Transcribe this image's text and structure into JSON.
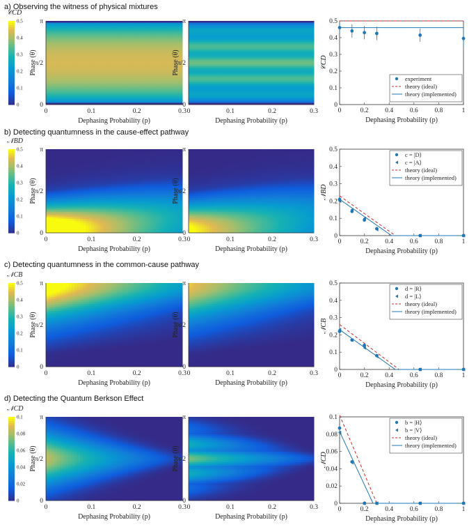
{
  "rows": [
    {
      "title": "a) Observing the witness of physical mixtures",
      "cblabel": "𝒞_{CD}",
      "cbmax": 0.5,
      "cbticks": [
        "0.5",
        "0.4",
        "0.3",
        "0.2",
        "0.1",
        "0"
      ],
      "pattern": "a"
    },
    {
      "title": "b) Detecting quantumness in the cause-effect pathway",
      "cblabel": "𝒩_{BD}",
      "cbmax": 0.5,
      "cbticks": [
        "0.5",
        "0.4",
        "0.3",
        "0.2",
        "0.1",
        "0"
      ],
      "pattern": "b"
    },
    {
      "title": "c) Detecting quantumness in the common-cause pathway",
      "cblabel": "𝒩_{CB}",
      "cbmax": 0.5,
      "cbticks": [
        "0.5",
        "0.4",
        "0.3",
        "0.2",
        "0.1",
        "0"
      ],
      "pattern": "c"
    },
    {
      "title": "d) Detecting the Quantum Berkson Effect",
      "cblabel": "𝒩_{CD}",
      "cbmax": 0.1,
      "cbticks": [
        "0.1",
        "0.08",
        "0.06",
        "0.04",
        "0.02",
        "0"
      ],
      "pattern": "d"
    }
  ],
  "heatmap_axes": {
    "xlabel": "Dephasing Probability (p)",
    "ylabel": "Phase (θ)",
    "xticks": [
      "0",
      "0.1",
      "0.2",
      "0.3"
    ],
    "yticks": [
      "0",
      "π/2",
      "π"
    ]
  },
  "colors": {
    "series": "#1f77b4",
    "ideal": "#d62728",
    "background": "#ffffff"
  },
  "chart_data": [
    {
      "type": "scatter",
      "title": "a) Observing the witness of physical mixtures",
      "xlabel": "Dephasing Probability (p)",
      "ylabel": "𝒞_{CD}",
      "xlim": [
        0,
        1
      ],
      "ylim": [
        0,
        0.5
      ],
      "xticks": [
        "0",
        "0.2",
        "0.4",
        "0.6",
        "0.8",
        "1"
      ],
      "yticks": [
        "0",
        "0.1",
        "0.2",
        "0.3",
        "0.4",
        "0.5"
      ],
      "series": [
        {
          "name": "experiment",
          "kind": "points",
          "x": [
            0,
            0.1,
            0.2,
            0.3,
            0.65,
            1
          ],
          "y": [
            0.46,
            0.44,
            0.43,
            0.425,
            0.415,
            0.395
          ],
          "err": [
            0.03,
            0.04,
            0.04,
            0.04,
            0.04,
            0.05
          ]
        }
      ],
      "lines": [
        {
          "name": "theory (ideal)",
          "style": "dashed",
          "x": [
            0,
            1
          ],
          "y": [
            0.5,
            0.5
          ]
        },
        {
          "name": "theory (implemented)",
          "style": "solid",
          "x": [
            0,
            1
          ],
          "y": [
            0.46,
            0.46
          ]
        }
      ],
      "legend": [
        "experiment",
        "theory (ideal)",
        "theory (implemented)"
      ],
      "legend_position": "bottom-right"
    },
    {
      "type": "scatter",
      "title": "b) Detecting quantumness in the cause-effect pathway",
      "xlabel": "Dephasing Probability (p)",
      "ylabel": "𝒩_{BD}",
      "xlim": [
        0,
        1
      ],
      "ylim": [
        0,
        0.5
      ],
      "xticks": [
        "0",
        "0.2",
        "0.4",
        "0.6",
        "0.8",
        "1"
      ],
      "yticks": [
        "0",
        "0.1",
        "0.2",
        "0.3",
        "0.4",
        "0.5"
      ],
      "series": [
        {
          "name": "c = |D⟩",
          "kind": "points",
          "x": [
            0,
            0.1,
            0.2,
            0.3,
            0.65,
            1
          ],
          "y": [
            0.21,
            0.14,
            0.09,
            0.04,
            0,
            0
          ]
        },
        {
          "name": "c = |A⟩",
          "kind": "triangles",
          "x": [
            0,
            0.1,
            0.2,
            0.3,
            0.65,
            1
          ],
          "y": [
            0.2,
            0.15,
            0.1,
            0.035,
            0,
            0
          ]
        }
      ],
      "lines": [
        {
          "name": "theory (ideal)",
          "style": "dashed",
          "x": [
            0,
            0.45,
            1
          ],
          "y": [
            0.23,
            0,
            0
          ]
        },
        {
          "name": "theory (implemented)",
          "style": "solid",
          "x": [
            0,
            0.42,
            1
          ],
          "y": [
            0.21,
            0,
            0
          ]
        }
      ],
      "legend": [
        "c = |D⟩",
        "c = |A⟩",
        "theory (ideal)",
        "theory (implemented)"
      ],
      "legend_position": "top-right"
    },
    {
      "type": "scatter",
      "title": "c) Detecting quantumness in the common-cause pathway",
      "xlabel": "Dephasing Probability (p)",
      "ylabel": "𝒩_{CB}",
      "xlim": [
        0,
        1
      ],
      "ylim": [
        0,
        0.5
      ],
      "xticks": [
        "0",
        "0.2",
        "0.4",
        "0.6",
        "0.8",
        "1"
      ],
      "yticks": [
        "0",
        "0.1",
        "0.2",
        "0.3",
        "0.4",
        "0.5"
      ],
      "series": [
        {
          "name": "d = |R⟩",
          "kind": "points",
          "x": [
            0,
            0.1,
            0.2,
            0.3,
            0.65,
            1
          ],
          "y": [
            0.22,
            0.17,
            0.14,
            0.08,
            0,
            0
          ]
        },
        {
          "name": "d = |L⟩",
          "kind": "triangles",
          "x": [
            0,
            0.1,
            0.2,
            0.3,
            0.65,
            1
          ],
          "y": [
            0.23,
            0.17,
            0.125,
            0.075,
            0,
            0
          ]
        }
      ],
      "lines": [
        {
          "name": "theory (ideal)",
          "style": "dashed",
          "x": [
            0,
            0.48,
            1
          ],
          "y": [
            0.26,
            0,
            0
          ]
        },
        {
          "name": "theory (implemented)",
          "style": "solid",
          "x": [
            0,
            0.45,
            1
          ],
          "y": [
            0.23,
            0,
            0
          ]
        }
      ],
      "legend": [
        "d = |R⟩",
        "d = |L⟩",
        "theory (ideal)",
        "theory (implemented)"
      ],
      "legend_position": "top-right"
    },
    {
      "type": "scatter",
      "title": "d) Detecting the Quantum Berkson Effect",
      "xlabel": "Dephasing Probability (p)",
      "ylabel": "𝒩_{CD}",
      "xlim": [
        0,
        1
      ],
      "ylim": [
        0,
        0.1
      ],
      "xticks": [
        "0",
        "0.2",
        "0.4",
        "0.6",
        "0.8",
        "1"
      ],
      "yticks": [
        "0",
        "0.02",
        "0.04",
        "0.06",
        "0.08",
        "0.1"
      ],
      "series": [
        {
          "name": "b = |H⟩",
          "kind": "points",
          "x": [
            0,
            0.1,
            0.2,
            0.3,
            0.65,
            1
          ],
          "y": [
            0.087,
            0.048,
            0,
            0,
            0,
            0
          ]
        },
        {
          "name": "b = |V⟩",
          "kind": "triangles",
          "x": [
            0,
            0.1,
            0.2,
            0.3,
            0.65,
            1
          ],
          "y": [
            0.082,
            0.047,
            0,
            0,
            0,
            0
          ]
        }
      ],
      "lines": [
        {
          "name": "theory (ideal)",
          "style": "dashed",
          "x": [
            0,
            0.3,
            1
          ],
          "y": [
            0.102,
            0,
            0
          ]
        },
        {
          "name": "theory (implemented)",
          "style": "solid",
          "x": [
            0,
            0.27,
            1
          ],
          "y": [
            0.083,
            0,
            0
          ]
        }
      ],
      "legend": [
        "b = |H⟩",
        "b = |V⟩",
        "theory (ideal)",
        "theory (implemented)"
      ],
      "legend_position": "top-right"
    }
  ]
}
